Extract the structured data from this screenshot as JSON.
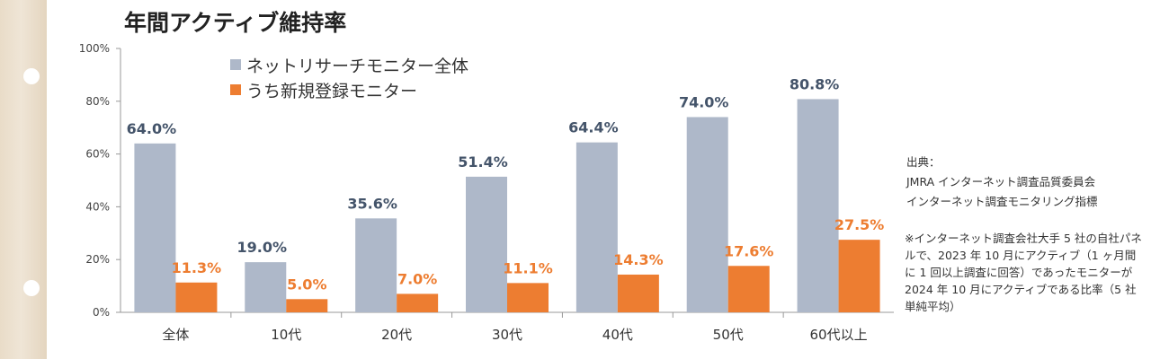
{
  "chart_data": {
    "type": "bar",
    "title": "年間アクティブ維持率",
    "categories": [
      "全体",
      "10代",
      "20代",
      "30代",
      "40代",
      "50代",
      "60代以上"
    ],
    "series": [
      {
        "name": "ネットリサーチモニター全体",
        "values": [
          64.0,
          19.0,
          35.6,
          51.4,
          64.4,
          74.0,
          80.8
        ],
        "color": "#aeb8c9",
        "label_color": "#44546a"
      },
      {
        "name": "うち新規登録モニター",
        "values": [
          11.3,
          5.0,
          7.0,
          11.1,
          14.3,
          17.6,
          27.5
        ],
        "color": "#ed7d31",
        "label_color": "#ed7d31"
      }
    ],
    "ylim": [
      0,
      100
    ],
    "yticks": [
      0,
      20,
      40,
      60,
      80,
      100
    ],
    "ytick_labels": [
      "0%",
      "20%",
      "40%",
      "60%",
      "80%",
      "100%"
    ],
    "data_labels": [
      [
        "64.0%",
        "19.0%",
        "35.6%",
        "51.4%",
        "64.4%",
        "74.0%",
        "80.8%"
      ],
      [
        "11.3%",
        "5.0%",
        "7.0%",
        "11.1%",
        "14.3%",
        "17.6%",
        "27.5%"
      ]
    ],
    "legend_position": "top-left",
    "grid": false
  },
  "legend": {
    "marker": "■",
    "items": [
      "ネットリサーチモニター全体",
      "うち新規登録モニター"
    ]
  },
  "source": {
    "label": "出典：",
    "lines": [
      "JMRA インターネット調査品質委員会",
      "インターネット調査モニタリング指標"
    ]
  },
  "note": "※インターネット調査会社大手 5 社の自社パネルで、2023 年 10 月にアクティブ（1 ヶ月間に 1 回以上調査に回答）であったモニターが 2024 年 10 月にアクティブである比率（5 社単純平均）"
}
